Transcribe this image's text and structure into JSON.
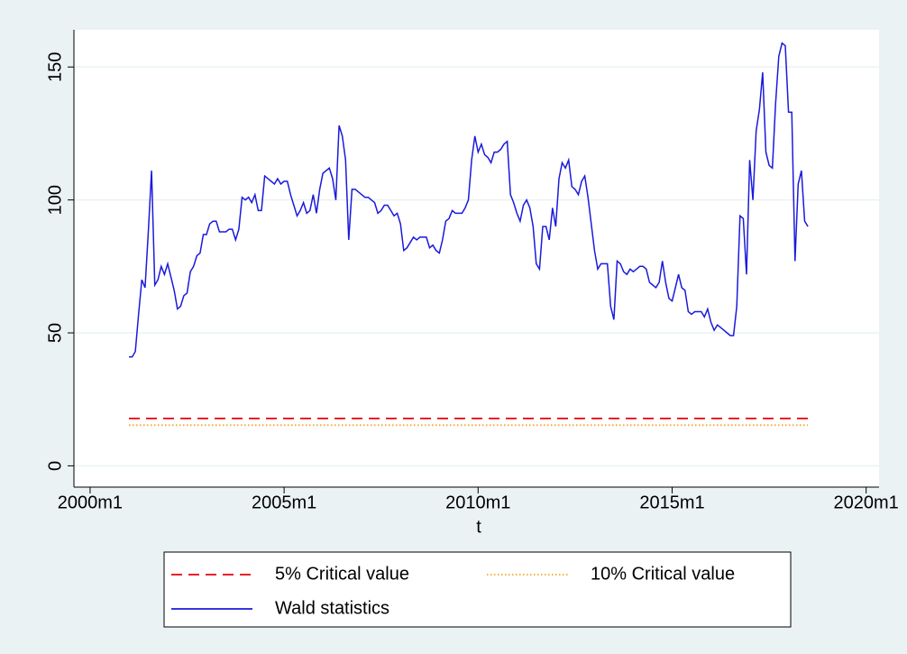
{
  "chart_data": {
    "type": "line",
    "x_label": "t",
    "x": [
      492,
      493,
      494,
      495,
      496,
      497,
      498,
      499,
      500,
      501,
      502,
      503,
      504,
      505,
      506,
      507,
      508,
      509,
      510,
      511,
      512,
      513,
      514,
      515,
      516,
      517,
      518,
      519,
      520,
      521,
      522,
      523,
      524,
      525,
      526,
      527,
      528,
      529,
      530,
      531,
      532,
      533,
      534,
      535,
      536,
      537,
      538,
      539,
      540,
      541,
      542,
      543,
      544,
      545,
      546,
      547,
      548,
      549,
      550,
      551,
      552,
      553,
      554,
      555,
      556,
      557,
      558,
      559,
      560,
      561,
      562,
      563,
      564,
      565,
      566,
      567,
      568,
      569,
      570,
      571,
      572,
      573,
      574,
      575,
      576,
      577,
      578,
      579,
      580,
      581,
      582,
      583,
      584,
      585,
      586,
      587,
      588,
      589,
      590,
      591,
      592,
      593,
      594,
      595,
      596,
      597,
      598,
      599,
      600,
      601,
      602,
      603,
      604,
      605,
      606,
      607,
      608,
      609,
      610,
      611,
      612,
      613,
      614,
      615,
      616,
      617,
      618,
      619,
      620,
      621,
      622,
      623,
      624,
      625,
      626,
      627,
      628,
      629,
      630,
      631,
      632,
      633,
      634,
      635,
      636,
      637,
      638,
      639,
      640,
      641,
      642,
      643,
      644,
      645,
      646,
      647,
      648,
      649,
      650,
      651,
      652,
      653,
      654,
      655,
      656,
      657,
      658,
      659,
      660,
      661,
      662,
      663,
      664,
      665,
      666,
      667,
      668,
      669,
      670,
      671,
      672,
      673,
      674,
      675,
      676,
      677,
      678,
      679,
      680,
      681,
      682,
      683,
      684,
      685,
      686,
      687,
      688,
      689,
      690,
      691,
      692,
      693,
      694,
      695,
      696,
      697,
      698,
      699,
      700,
      701,
      702
    ],
    "series": [
      {
        "name": "5% Critical value",
        "color": "#e8000b",
        "style": "dashed",
        "x": [
          492,
          702
        ],
        "values": [
          17.8,
          17.8
        ]
      },
      {
        "name": "10% Critical value",
        "color": "#f5a623",
        "style": "dotted",
        "x": [
          492,
          702
        ],
        "values": [
          15.3,
          15.3
        ]
      },
      {
        "name": "Wald statistics",
        "color": "#1a1adc",
        "style": "solid",
        "values": [
          41,
          41,
          43,
          57,
          70,
          67,
          88,
          111,
          68,
          70,
          75,
          72,
          76,
          71,
          66,
          59,
          60,
          64,
          65,
          73,
          75,
          79,
          80,
          87,
          87,
          91,
          92,
          92,
          88,
          88,
          88,
          89,
          89,
          85,
          89,
          101,
          100,
          101,
          99,
          102,
          96,
          96,
          109,
          108,
          107,
          106,
          108,
          106,
          107,
          107,
          102,
          98,
          94,
          96,
          99,
          95,
          96,
          102,
          95,
          104,
          110,
          111,
          112,
          108,
          100,
          128,
          124,
          115,
          85,
          104,
          104,
          103,
          102,
          101,
          101,
          100,
          99,
          95,
          96,
          98,
          98,
          96,
          94,
          95,
          91,
          81,
          82,
          84,
          86,
          85,
          86,
          86,
          86,
          82,
          83,
          81,
          80,
          85,
          92,
          93,
          96,
          95,
          95,
          95,
          97,
          100,
          115,
          124,
          118,
          121,
          117,
          116,
          114,
          118,
          118,
          119,
          121,
          122,
          102,
          99,
          95,
          92,
          98,
          100,
          97,
          90,
          76,
          74,
          90,
          90,
          85,
          97,
          90,
          108,
          114,
          112,
          115,
          105,
          104,
          102,
          107,
          109,
          101,
          91,
          81,
          74,
          76,
          76,
          76,
          60,
          55,
          77,
          76,
          73,
          72,
          74,
          73,
          74,
          75,
          75,
          74,
          69,
          68,
          67,
          69,
          77,
          69,
          63,
          62,
          67,
          72,
          67,
          66,
          58,
          57,
          58,
          58,
          58,
          56,
          59,
          54,
          51,
          53,
          52,
          51,
          50,
          49,
          49,
          60,
          94,
          93,
          72,
          115,
          100,
          126,
          134,
          148,
          118,
          113,
          112,
          136,
          154,
          159,
          158,
          133,
          133,
          77,
          106,
          111,
          92,
          90
        ]
      }
    ],
    "xlim": [
      475,
      724
    ],
    "xticks": [
      {
        "value": 480,
        "label": "2000m1"
      },
      {
        "value": 540,
        "label": "2005m1"
      },
      {
        "value": 600,
        "label": "2010m1"
      },
      {
        "value": 660,
        "label": "2015m1"
      },
      {
        "value": 720,
        "label": "2020m1"
      }
    ],
    "ylim": [
      -8,
      164
    ],
    "yticks": [
      0,
      50,
      100,
      150
    ],
    "grid": true,
    "legend": "bottom"
  }
}
